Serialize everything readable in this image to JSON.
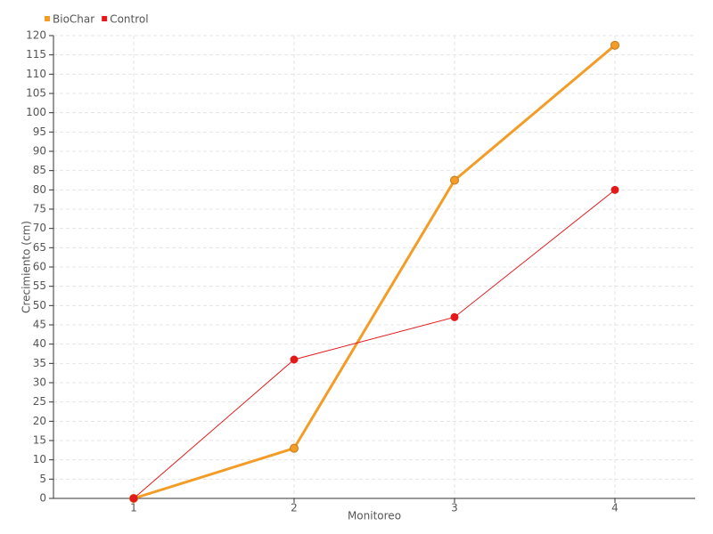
{
  "chart_data": {
    "type": "line",
    "categories": [
      "1",
      "2",
      "3",
      "4"
    ],
    "x_label": "Monitoreo",
    "y_label": "Crecimiento (cm)",
    "series": [
      {
        "name": "BioChar",
        "color": "#f39c26",
        "values": [
          0,
          13,
          82.5,
          117.5
        ]
      },
      {
        "name": "Control",
        "color": "#e31a1c",
        "values": [
          0,
          36,
          47,
          80
        ]
      }
    ],
    "ylim": [
      0,
      120
    ],
    "yticks": [
      0,
      5,
      10,
      15,
      20,
      25,
      30,
      35,
      40,
      45,
      50,
      55,
      60,
      65,
      70,
      75,
      80,
      85,
      90,
      95,
      100,
      105,
      110,
      115,
      120
    ],
    "grid": true,
    "legend": "top-left"
  }
}
